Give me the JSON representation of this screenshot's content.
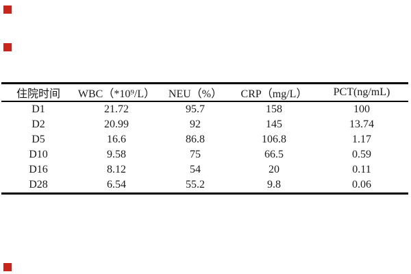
{
  "page": {
    "background": "#ffffff",
    "text_color": "#1a1a1a",
    "border_color": "#000000"
  },
  "markers": {
    "color": "#c9251c",
    "count": 3
  },
  "table": {
    "columns": [
      "住院时间",
      "WBC（*10⁹/L）",
      "NEU（%）",
      "CRP（mg/L）",
      "PCT(ng/mL)"
    ],
    "rows": [
      [
        "D1",
        "21.72",
        "95.7",
        "158",
        "100"
      ],
      [
        "D2",
        "20.99",
        "92",
        "145",
        "13.74"
      ],
      [
        "D5",
        "16.6",
        "86.8",
        "106.8",
        "1.17"
      ],
      [
        "D10",
        "9.58",
        "75",
        "66.5",
        "0.59"
      ],
      [
        "D16",
        "8.12",
        "54",
        "20",
        "0.11"
      ],
      [
        "D28",
        "6.54",
        "55.2",
        "9.8",
        "0.06"
      ]
    ]
  }
}
